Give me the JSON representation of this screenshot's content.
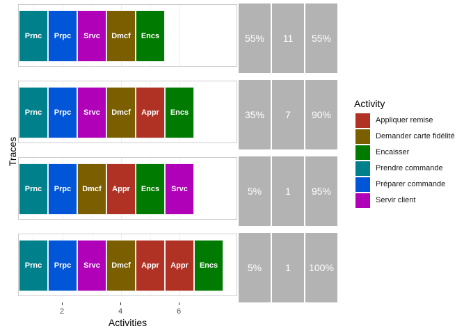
{
  "chart_data": {
    "type": "trace_explorer",
    "xlabel": "Activities",
    "ylabel": "Traces",
    "x_ticks": [
      2,
      4,
      6
    ],
    "xlim": [
      0.5,
      8
    ],
    "legend_title": "Activity",
    "legend_position": "right",
    "activities": [
      {
        "name": "Appliquer remise",
        "abbr": "Appr",
        "color": "#B03224"
      },
      {
        "name": "Demander carte fidélité",
        "abbr": "Dmcf",
        "color": "#7A5E00"
      },
      {
        "name": "Encaisser",
        "abbr": "Encs",
        "color": "#007A00"
      },
      {
        "name": "Prendre commande",
        "abbr": "Prnc",
        "color": "#00808A"
      },
      {
        "name": "Préparer commande",
        "abbr": "Prpc",
        "color": "#0056D6"
      },
      {
        "name": "Servir client",
        "abbr": "Srvc",
        "color": "#B000B8"
      }
    ],
    "traces": [
      {
        "activities": [
          "Prnc",
          "Prpc",
          "Srvc",
          "Dmcf",
          "Encs"
        ],
        "relative_frequency": "55%",
        "absolute_frequency": "11",
        "cumulative": "55%"
      },
      {
        "activities": [
          "Prnc",
          "Prpc",
          "Srvc",
          "Dmcf",
          "Appr",
          "Encs"
        ],
        "relative_frequency": "35%",
        "absolute_frequency": "7",
        "cumulative": "90%"
      },
      {
        "activities": [
          "Prnc",
          "Prpc",
          "Dmcf",
          "Appr",
          "Encs",
          "Srvc"
        ],
        "relative_frequency": "5%",
        "absolute_frequency": "1",
        "cumulative": "95%"
      },
      {
        "activities": [
          "Prnc",
          "Prpc",
          "Srvc",
          "Dmcf",
          "Appr",
          "Appr",
          "Encs"
        ],
        "relative_frequency": "5%",
        "absolute_frequency": "1",
        "cumulative": "100%"
      }
    ]
  }
}
